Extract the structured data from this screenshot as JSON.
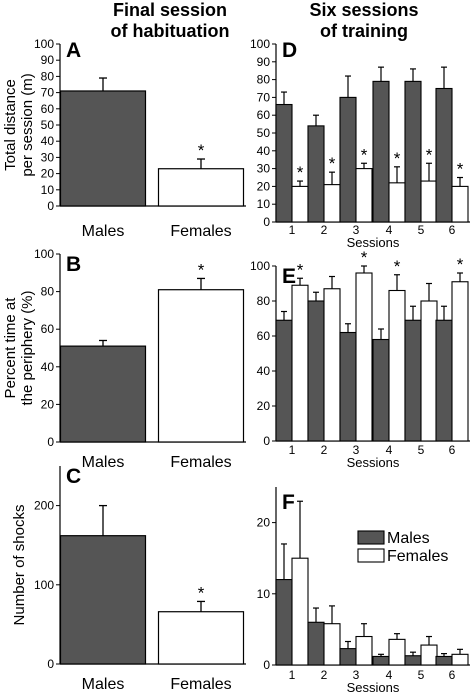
{
  "headers": {
    "left_line1": "Final session",
    "left_line2": "of habituation",
    "right_line1": "Six sessions",
    "right_line2": "of training"
  },
  "colors": {
    "males": "#555555",
    "females": "#ffffff",
    "stroke": "#000000"
  },
  "chart_data": [
    {
      "id": "A",
      "type": "bar",
      "letter": "A",
      "ylabel_line1": "Total distance",
      "ylabel_line2": "per session (m)",
      "ylim": [
        0,
        100
      ],
      "yticks": [
        0,
        10,
        20,
        30,
        40,
        50,
        60,
        70,
        80,
        90,
        100
      ],
      "categories": [
        "Males",
        "Females"
      ],
      "values": [
        71,
        23
      ],
      "errors": [
        8,
        6
      ],
      "stars": [
        false,
        true
      ]
    },
    {
      "id": "B",
      "type": "bar",
      "letter": "B",
      "ylabel_line1": "Percent time at",
      "ylabel_line2": "the periphery (%)",
      "ylim": [
        0,
        100
      ],
      "yticks": [
        0,
        20,
        40,
        60,
        80,
        100
      ],
      "categories": [
        "Males",
        "Females"
      ],
      "values": [
        51,
        81
      ],
      "errors": [
        3,
        6
      ],
      "stars": [
        false,
        true
      ]
    },
    {
      "id": "C",
      "type": "bar",
      "letter": "C",
      "ylabel_line1": "Number of  shocks",
      "ylabel_line2": "",
      "ylim": [
        0,
        250
      ],
      "yticks": [
        0,
        100,
        200
      ],
      "categories": [
        "Males",
        "Females"
      ],
      "values": [
        162,
        66
      ],
      "errors": [
        38,
        13
      ],
      "stars": [
        false,
        true
      ]
    },
    {
      "id": "D",
      "type": "bar",
      "letter": "D",
      "xlabel": "Sessions",
      "ylim": [
        0,
        100
      ],
      "yticks": [
        0,
        10,
        20,
        30,
        40,
        50,
        60,
        70,
        80,
        90,
        100
      ],
      "categories": [
        "1",
        "2",
        "3",
        "4",
        "5",
        "6"
      ],
      "series": [
        {
          "name": "Males",
          "values": [
            66,
            54,
            70,
            79,
            79,
            75
          ],
          "errors": [
            7,
            6,
            12,
            8,
            7,
            12
          ]
        },
        {
          "name": "Females",
          "values": [
            20,
            21,
            30,
            22,
            23,
            20
          ],
          "errors": [
            3,
            7,
            3,
            9,
            10,
            5
          ]
        }
      ],
      "stars": [
        true,
        true,
        true,
        true,
        true,
        true
      ]
    },
    {
      "id": "E",
      "type": "bar",
      "letter": "E",
      "xlabel": "Sessions",
      "ylim": [
        0,
        100
      ],
      "yticks": [
        0,
        20,
        40,
        60,
        80,
        100
      ],
      "categories": [
        "1",
        "2",
        "3",
        "4",
        "5",
        "6"
      ],
      "series": [
        {
          "name": "Males",
          "values": [
            69,
            80,
            62,
            58,
            69,
            69
          ],
          "errors": [
            5,
            5,
            5,
            6,
            8,
            8
          ]
        },
        {
          "name": "Females",
          "values": [
            89,
            87,
            96,
            86,
            80,
            91
          ],
          "errors": [
            4,
            7,
            4,
            9,
            10,
            5
          ]
        }
      ],
      "stars": [
        true,
        false,
        true,
        true,
        false,
        true
      ]
    },
    {
      "id": "F",
      "type": "bar",
      "letter": "F",
      "xlabel": "Sessions",
      "ylim": [
        0,
        25
      ],
      "yticks": [
        0,
        10,
        20
      ],
      "categories": [
        "1",
        "2",
        "3",
        "4",
        "5",
        "6"
      ],
      "series": [
        {
          "name": "Males",
          "values": [
            12,
            6,
            2.3,
            1.2,
            1.3,
            1.2
          ],
          "errors": [
            5,
            2,
            1,
            0.3,
            0.5,
            0.4
          ]
        },
        {
          "name": "Females",
          "values": [
            15,
            5.8,
            4,
            3.6,
            2.8,
            1.5
          ],
          "errors": [
            8,
            2.5,
            1.8,
            0.8,
            1.2,
            0.7
          ]
        }
      ],
      "legend": [
        "Males",
        "Females"
      ],
      "legend_position": "top-right"
    }
  ]
}
